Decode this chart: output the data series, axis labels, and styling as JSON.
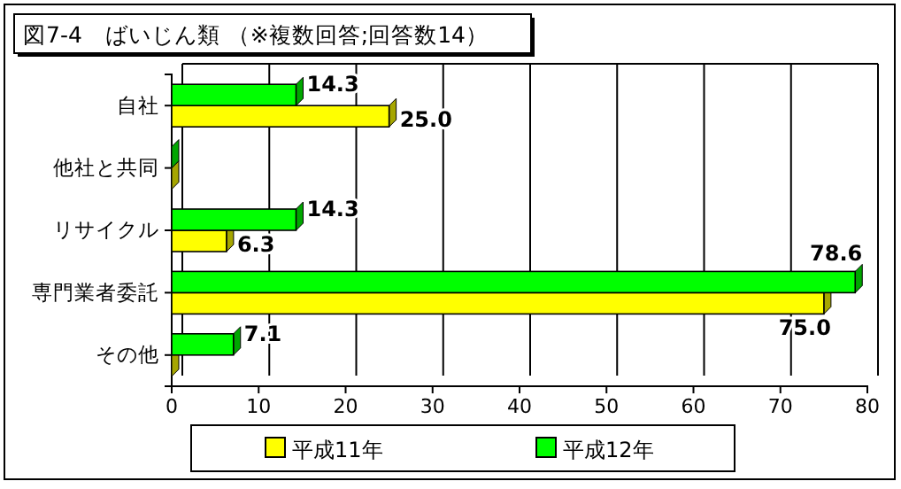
{
  "chart_data": {
    "type": "bar",
    "orientation": "horizontal",
    "title": "図7-4　ばいじん類 （※複数回答;回答数14）",
    "categories": [
      "自社",
      "他社と共同",
      "リサイクル",
      "専門業者委託",
      "その他"
    ],
    "series": [
      {
        "name": "平成11年",
        "color": "#ffff00",
        "values": [
          25.0,
          0,
          6.3,
          75.0,
          0
        ],
        "value_labels": [
          "25.0",
          null,
          "6.3",
          "75.0",
          null
        ]
      },
      {
        "name": "平成12年",
        "color": "#00ff00",
        "values": [
          14.3,
          0,
          14.3,
          78.6,
          7.1
        ],
        "value_labels": [
          "14.3",
          null,
          "14.3",
          "78.6",
          "7.1"
        ]
      }
    ],
    "xlim": [
      0,
      80
    ],
    "xticks": [
      0,
      10,
      20,
      30,
      40,
      50,
      60,
      70,
      80
    ],
    "grid": "x",
    "legend": "bottom"
  }
}
